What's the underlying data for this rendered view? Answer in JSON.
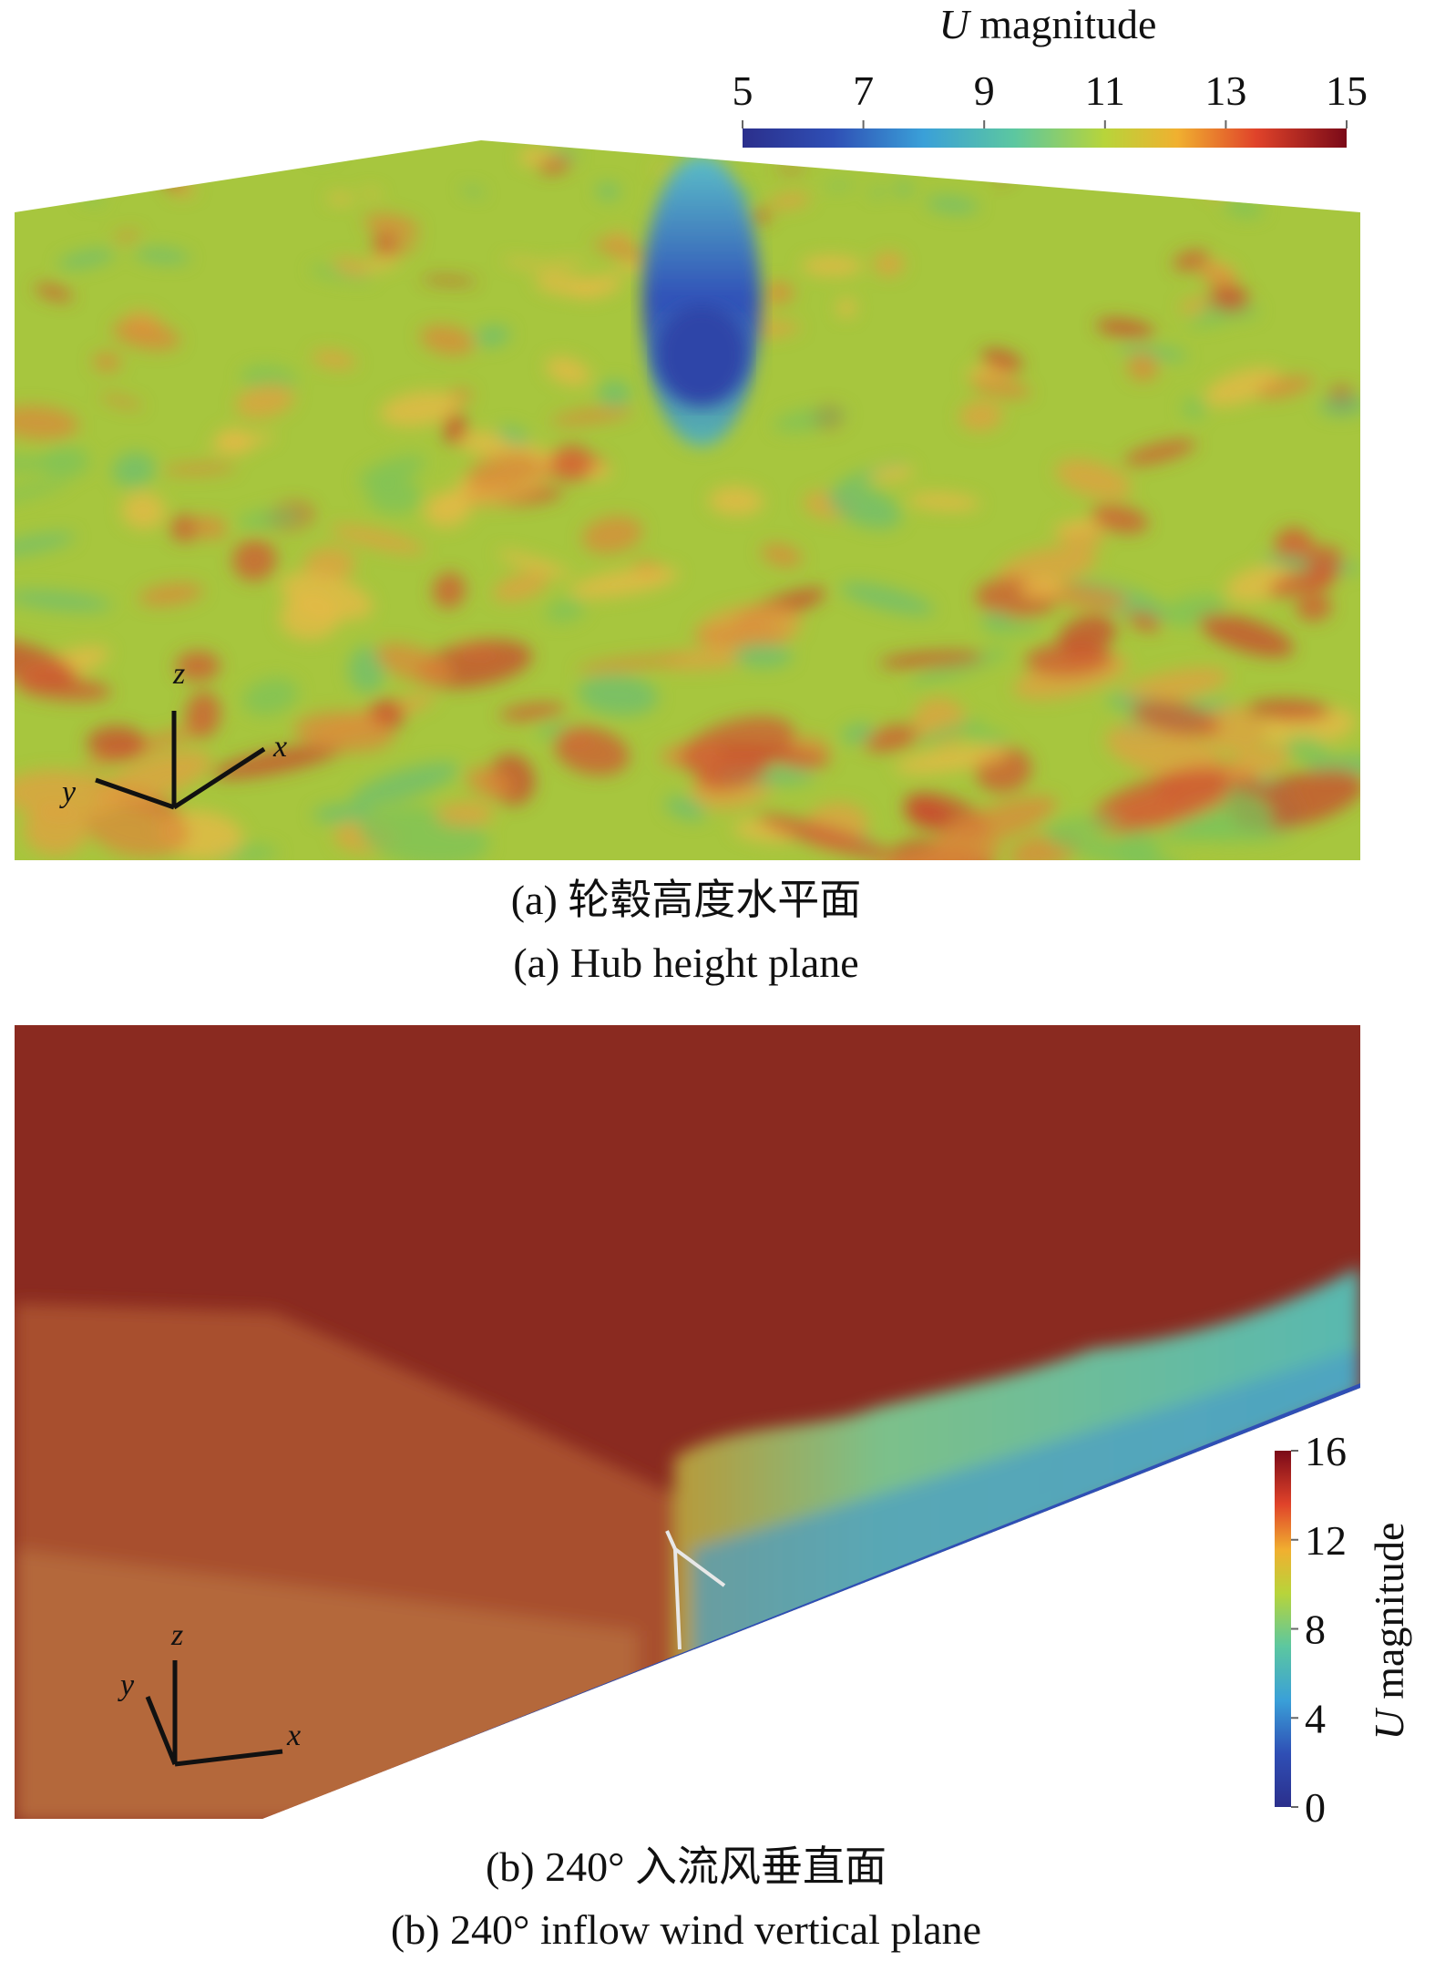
{
  "figure": {
    "panels": [
      {
        "caption_cn": "(a) 轮毂高度水平面",
        "caption_en": "(a) Hub height plane",
        "colorbar": {
          "label_symbol": "U",
          "label_text": "magnitude",
          "ticks": [
            5,
            7,
            9,
            11,
            13,
            15
          ]
        },
        "axes": [
          "z",
          "x",
          "y"
        ]
      },
      {
        "caption_cn": "(b) 240° 入流风垂直面",
        "caption_en": "(b) 240° inflow wind vertical plane",
        "colorbar": {
          "label_symbol": "U",
          "label_text": "magnitude",
          "ticks": [
            0,
            4,
            8,
            12,
            16
          ]
        },
        "axes": [
          "z",
          "x",
          "y"
        ]
      }
    ]
  }
}
